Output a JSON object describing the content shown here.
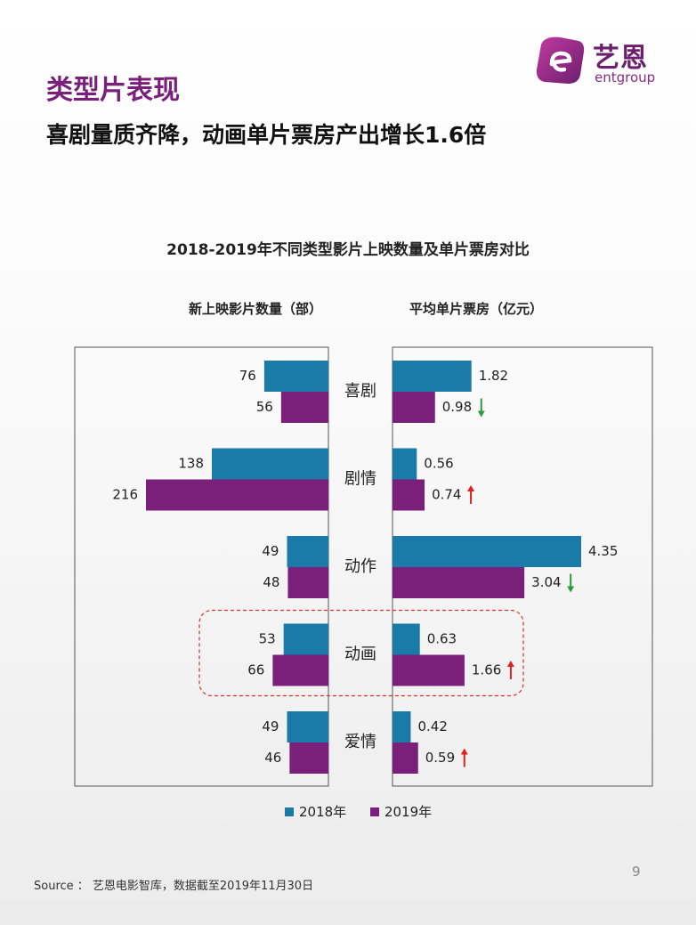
{
  "slide": {
    "section_title": "类型片表现",
    "headline": "喜剧量质齐降，动画单片票房产出增长1.6倍",
    "page_number": "9",
    "source": "Source ： 艺恩电影智库，数据截至2019年11月30日"
  },
  "logo": {
    "cn": "艺恩",
    "en": "entgroup"
  },
  "colors": {
    "2018": "#1a7aa8",
    "2019": "#7a1f7a",
    "up": "#e0201e",
    "down": "#2a9a3a",
    "title_purple": "#7a1f7a"
  },
  "chart_data": {
    "type": "bar",
    "title": "2018-2019年不同类型影片上映数量及单片票房对比",
    "categories": [
      "喜剧",
      "剧情",
      "动作",
      "动画",
      "爱情"
    ],
    "highlight_category": "动画",
    "panels": [
      {
        "title": "新上映影片数量（部）",
        "orientation": "horizontal-left",
        "series": [
          {
            "name": "2018年",
            "values": [
              76,
              138,
              49,
              53,
              49
            ]
          },
          {
            "name": "2019年",
            "values": [
              56,
              216,
              48,
              66,
              46
            ]
          }
        ],
        "value_labels": {
          "2018年": [
            "76",
            "138",
            "49",
            "53",
            "49"
          ],
          "2019年": [
            "56",
            "216",
            "48",
            "66",
            "46"
          ]
        }
      },
      {
        "title": "平均单片票房（亿元）",
        "orientation": "horizontal-right",
        "series": [
          {
            "name": "2018年",
            "values": [
              1.82,
              0.56,
              4.35,
              0.63,
              0.42
            ]
          },
          {
            "name": "2019年",
            "values": [
              0.98,
              0.74,
              3.04,
              1.66,
              0.59
            ]
          }
        ],
        "value_labels": {
          "2018年": [
            "1.82",
            "0.56",
            "4.35",
            "0.63",
            "0.42"
          ],
          "2019年": [
            "0.98",
            "0.74",
            "3.04",
            "1.66",
            "0.59"
          ]
        },
        "trend": [
          "down",
          "up",
          "down",
          "up",
          "up"
        ]
      }
    ],
    "legend": [
      "2018年",
      "2019年"
    ],
    "legend_position": "bottom"
  }
}
